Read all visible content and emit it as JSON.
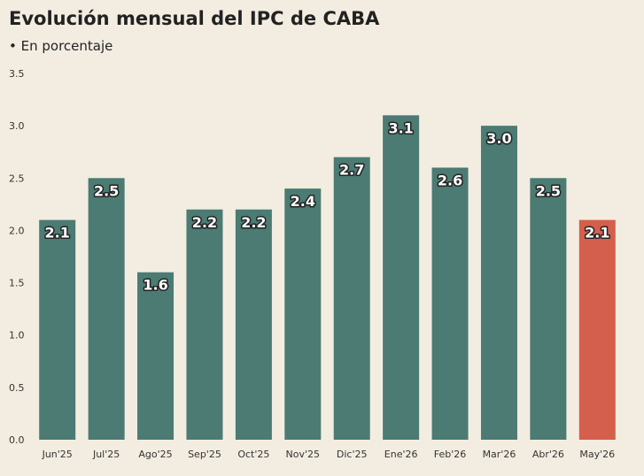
{
  "chart_data": {
    "type": "bar",
    "title": "Evolución mensual del IPC de CABA",
    "subtitle": "• En porcentaje",
    "categories": [
      "Jun'25",
      "Jul'25",
      "Ago'25",
      "Sep'25",
      "Oct'25",
      "Nov'25",
      "Dic'25",
      "Ene'26",
      "Feb'26",
      "Mar'26",
      "Abr'26",
      "May'26"
    ],
    "values": [
      2.1,
      2.5,
      1.6,
      2.2,
      2.2,
      2.4,
      2.7,
      3.1,
      2.6,
      3.0,
      2.5,
      2.1
    ],
    "value_labels": [
      "2.1",
      "2.5",
      "1.6",
      "2.2",
      "2.2",
      "2.4",
      "2.7",
      "3.1",
      "2.6",
      "3.0",
      "2.5",
      "2.1"
    ],
    "colors": [
      "#4b7b73",
      "#4b7b73",
      "#4b7b73",
      "#4b7b73",
      "#4b7b73",
      "#4b7b73",
      "#4b7b73",
      "#4b7b73",
      "#4b7b73",
      "#4b7b73",
      "#4b7b73",
      "#d45f4c"
    ],
    "ylim": [
      0,
      3.5
    ],
    "yticks": [
      {
        "value": 0,
        "label": "0.0"
      },
      0.5,
      {
        "value": 1,
        "label": "1.0"
      },
      1.5,
      {
        "value": 2,
        "label": "2.0"
      },
      2.5,
      {
        "value": 3,
        "label": "3.0"
      },
      3.5
    ],
    "grid": false
  }
}
